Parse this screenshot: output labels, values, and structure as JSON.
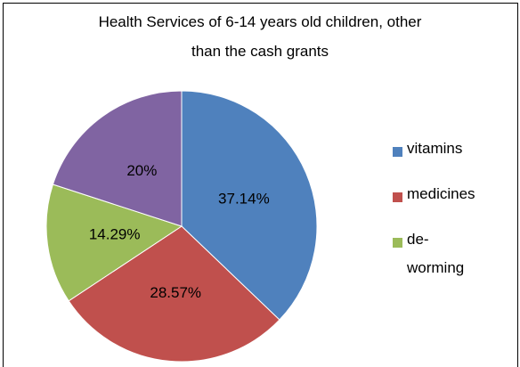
{
  "chart_data": {
    "type": "pie",
    "title": "Health Services of 6-14 years old children, other than the cash grants",
    "categories": [
      "vitamins",
      "medicines",
      "de-worming",
      null
    ],
    "values": [
      37.14,
      28.57,
      14.29,
      20
    ],
    "value_labels": [
      "37.14%",
      "28.57%",
      "14.29%",
      "20%"
    ],
    "colors": [
      "#4f81bd",
      "#c0504d",
      "#9bbb59",
      "#8064a2"
    ],
    "legend": "right"
  }
}
